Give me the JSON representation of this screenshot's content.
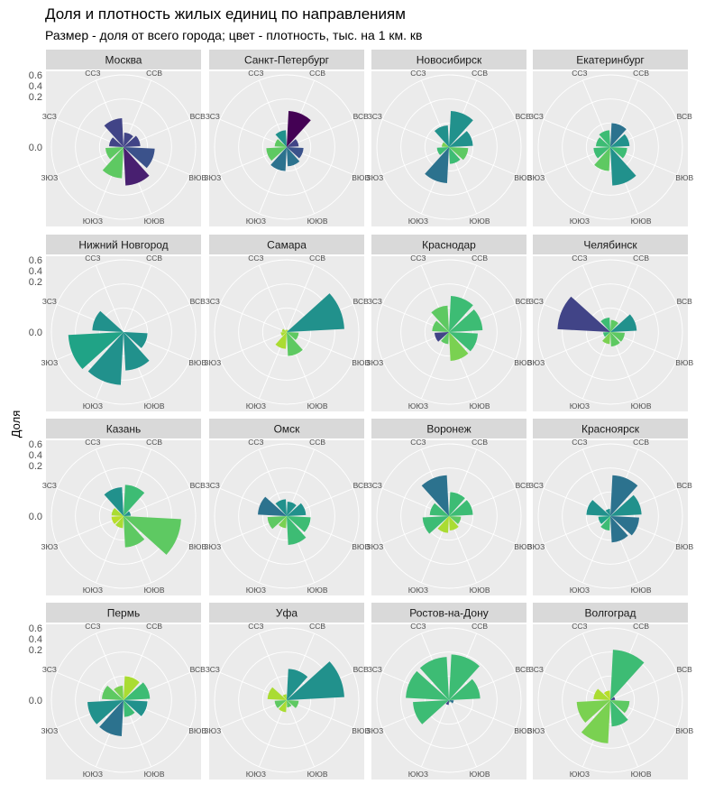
{
  "title": "Доля и плотность жилых единиц по направлениям",
  "subtitle": "Размер - доля от всего города; цвет - плотность, тыс. на 1 км. кв",
  "chart_data": {
    "type": "polar-bar",
    "ylabel": "Доля",
    "y_ticks": [
      "0.6",
      "0.4",
      "0.2",
      "0.0"
    ],
    "directions": [
      "ССВ",
      "ВСВ",
      "ВЮВ",
      "ЮЮВ",
      "ЮЮЗ",
      "ЗЮЗ",
      "ЗСЗ",
      "ССЗ"
    ],
    "facets": [
      {
        "name": "Москва",
        "values": [
          0.12,
          0.14,
          0.26,
          0.32,
          0.26,
          0.15,
          0.12,
          0.24
        ],
        "colors": [
          "#414487",
          "#414487",
          "#3b528b",
          "#481f70",
          "#5ec962",
          "#5ec962",
          "#414487",
          "#414487"
        ]
      },
      {
        "name": "Санкт-Петербург",
        "values": [
          0.3,
          0.1,
          0.14,
          0.16,
          0.2,
          0.17,
          0.1,
          0.14
        ],
        "colors": [
          "#440154",
          "#414487",
          "#3b528b",
          "#2c728e",
          "#2c728e",
          "#5ec962",
          "#5ec962",
          "#21918c"
        ]
      },
      {
        "name": "Новосибирск",
        "values": [
          0.3,
          0.2,
          0.16,
          0.14,
          0.3,
          0.1,
          0.06,
          0.18
        ],
        "colors": [
          "#21918c",
          "#21918c",
          "#5ec962",
          "#3dbc74",
          "#2c728e",
          "#3dbc74",
          "#7ad151",
          "#21918c"
        ]
      },
      {
        "name": "Екатеринбург",
        "values": [
          0.2,
          0.16,
          0.14,
          0.32,
          0.2,
          0.14,
          0.12,
          0.14
        ],
        "colors": [
          "#2c728e",
          "#21918c",
          "#3dbc74",
          "#21918c",
          "#5ec962",
          "#3dbc74",
          "#3dbc74",
          "#3dbc74"
        ]
      },
      {
        "name": "Нижний Новгород",
        "values": [
          0.0,
          0.0,
          0.2,
          0.32,
          0.44,
          0.46,
          0.26,
          0.0
        ],
        "colors": [
          "#21918c",
          "#21918c",
          "#21918c",
          "#21918c",
          "#21918c",
          "#20a386",
          "#21918c",
          "#21918c"
        ]
      },
      {
        "name": "Самара",
        "values": [
          0.02,
          0.48,
          0.1,
          0.2,
          0.14,
          0.05,
          0.04,
          0.02
        ],
        "colors": [
          "#aadc32",
          "#21918c",
          "#5ec962",
          "#5ec962",
          "#aadc32",
          "#aadc32",
          "#aadc32",
          "#aadc32"
        ]
      },
      {
        "name": "Краснодар",
        "values": [
          0.3,
          0.28,
          0.24,
          0.24,
          0.1,
          0.12,
          0.14,
          0.22
        ],
        "colors": [
          "#3dbc74",
          "#3dbc74",
          "#3dbc74",
          "#7ad151",
          "#5ec962",
          "#414487",
          "#5ec962",
          "#5ec962"
        ]
      },
      {
        "name": "Челябинск",
        "values": [
          0.1,
          0.22,
          0.12,
          0.12,
          0.1,
          0.06,
          0.44,
          0.12
        ],
        "colors": [
          "#5ec962",
          "#21918c",
          "#5ec962",
          "#5ec962",
          "#7ad151",
          "#3dbc74",
          "#414487",
          "#3dbc74"
        ]
      },
      {
        "name": "Казань",
        "values": [
          0.26,
          0.06,
          0.48,
          0.26,
          0.1,
          0.1,
          0.1,
          0.24
        ],
        "colors": [
          "#3dbc74",
          "#21918c",
          "#5ec962",
          "#5ec962",
          "#aadc32",
          "#b8de29",
          "#aadc32",
          "#21918c"
        ]
      },
      {
        "name": "Омск",
        "values": [
          0.12,
          0.16,
          0.2,
          0.24,
          0.1,
          0.16,
          0.24,
          0.14
        ],
        "colors": [
          "#21918c",
          "#21918c",
          "#3dbc74",
          "#3dbc74",
          "#7ad151",
          "#5ec962",
          "#2c728e",
          "#21918c"
        ]
      },
      {
        "name": "Воронеж",
        "values": [
          0.2,
          0.2,
          0.1,
          0.12,
          0.14,
          0.22,
          0.16,
          0.34
        ],
        "colors": [
          "#3dbc74",
          "#3dbc74",
          "#5ec962",
          "#aadc32",
          "#aadc32",
          "#3dbc74",
          "#3dbc74",
          "#2c728e"
        ]
      },
      {
        "name": "Красноярск",
        "values": [
          0.34,
          0.26,
          0.24,
          0.22,
          0.12,
          0.1,
          0.2,
          0.06
        ],
        "colors": [
          "#2c728e",
          "#21918c",
          "#2c728e",
          "#2c728e",
          "#3dbc74",
          "#20a386",
          "#21918c",
          "#21918c"
        ]
      },
      {
        "name": "Пермь",
        "values": [
          0.2,
          0.22,
          0.2,
          0.14,
          0.3,
          0.3,
          0.18,
          0.12
        ],
        "colors": [
          "#aadc32",
          "#3dbc74",
          "#21918c",
          "#3dbc74",
          "#2c728e",
          "#21918c",
          "#5ec962",
          "#7ad151"
        ]
      },
      {
        "name": "Уфа",
        "values": [
          0.26,
          0.48,
          0.1,
          0.06,
          0.1,
          0.1,
          0.16,
          0.05
        ],
        "colors": [
          "#21918c",
          "#21918c",
          "#5ec962",
          "#5ec962",
          "#aadc32",
          "#5ec962",
          "#aadc32",
          "#aadc32"
        ]
      },
      {
        "name": "Ростов-на-Дону",
        "values": [
          0.38,
          0.26,
          0.04,
          0.02,
          0.04,
          0.3,
          0.36,
          0.36
        ],
        "colors": [
          "#3dbc74",
          "#3dbc74",
          "#2c728e",
          "#3dbc74",
          "#414487",
          "#3dbc74",
          "#3dbc74",
          "#3dbc74"
        ]
      },
      {
        "name": "Волгоград",
        "values": [
          0.42,
          0.04,
          0.16,
          0.22,
          0.36,
          0.28,
          0.14,
          0.08
        ],
        "colors": [
          "#3dbc74",
          "#414487",
          "#5ec962",
          "#3dbc74",
          "#7ad151",
          "#7ad151",
          "#aadc32",
          "#b8de29"
        ]
      }
    ],
    "colors": {
      "panel_bg": "#ebebeb",
      "strip_bg": "#d9d9d9",
      "grid": "#ffffff"
    }
  }
}
